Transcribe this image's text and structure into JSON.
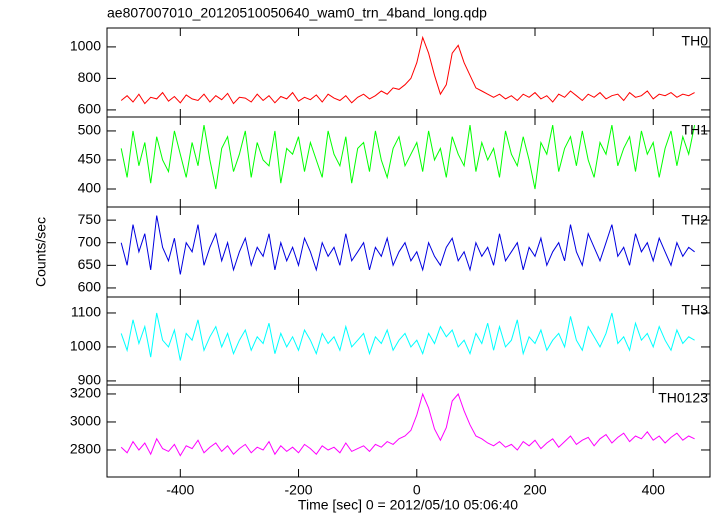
{
  "chart_data": {
    "type": "line",
    "title": "ae807007010_20120510050640_wam0_trn_4band_long.qdp",
    "x_label": "Time [sec] 0 = 2012/05/10 05:06:40",
    "y_label": "Counts/sec",
    "xlim": [
      -524,
      496
    ],
    "xticks": [
      -400,
      -200,
      0,
      200,
      400
    ],
    "x": [
      -500,
      -490,
      -480,
      -470,
      -460,
      -450,
      -440,
      -430,
      -420,
      -410,
      -400,
      -390,
      -380,
      -370,
      -360,
      -350,
      -340,
      -330,
      -320,
      -310,
      -300,
      -290,
      -280,
      -270,
      -260,
      -250,
      -240,
      -230,
      -220,
      -210,
      -200,
      -190,
      -180,
      -170,
      -160,
      -150,
      -140,
      -130,
      -120,
      -110,
      -100,
      -90,
      -80,
      -70,
      -60,
      -50,
      -40,
      -30,
      -20,
      -10,
      0,
      10,
      20,
      30,
      40,
      50,
      60,
      70,
      80,
      90,
      100,
      110,
      120,
      130,
      140,
      150,
      160,
      170,
      180,
      190,
      200,
      210,
      220,
      230,
      240,
      250,
      260,
      270,
      280,
      290,
      300,
      310,
      320,
      330,
      340,
      350,
      360,
      370,
      380,
      390,
      400,
      410,
      420,
      430,
      440,
      450,
      460,
      470
    ],
    "series": [
      {
        "name": "TH0",
        "color": "#ff0000",
        "ylim": [
          555,
          1120
        ],
        "yticks": [
          600,
          800,
          1000
        ],
        "values": [
          660,
          690,
          650,
          700,
          640,
          680,
          670,
          710,
          655,
          685,
          645,
          695,
          670,
          660,
          700,
          650,
          690,
          665,
          705,
          640,
          680,
          675,
          650,
          700,
          660,
          690,
          645,
          685,
          670,
          710,
          655,
          680,
          665,
          695,
          650,
          700,
          675,
          660,
          690,
          645,
          680,
          700,
          670,
          690,
          720,
          700,
          740,
          730,
          760,
          800,
          900,
          1060,
          960,
          820,
          700,
          760,
          960,
          1010,
          900,
          820,
          740,
          720,
          700,
          680,
          700,
          670,
          690,
          660,
          700,
          680,
          710,
          670,
          690,
          650,
          700,
          680,
          720,
          690,
          660,
          700,
          680,
          710,
          670,
          690,
          700,
          660,
          710,
          680,
          690,
          720,
          670,
          700,
          690,
          710,
          680,
          700,
          690,
          710
        ]
      },
      {
        "name": "TH1",
        "color": "#00ff00",
        "ylim": [
          369,
          524
        ],
        "yticks": [
          400,
          450,
          500
        ],
        "values": [
          470,
          420,
          500,
          440,
          480,
          410,
          490,
          450,
          430,
          500,
          460,
          420,
          480,
          440,
          510,
          450,
          400,
          470,
          490,
          430,
          460,
          500,
          420,
          480,
          450,
          440,
          500,
          410,
          470,
          460,
          490,
          430,
          480,
          450,
          420,
          500,
          460,
          440,
          490,
          410,
          470,
          480,
          430,
          500,
          450,
          420,
          470,
          490,
          440,
          460,
          480,
          430,
          500,
          450,
          470,
          420,
          490,
          460,
          440,
          510,
          430,
          480,
          450,
          470,
          420,
          500,
          460,
          440,
          490,
          450,
          400,
          480,
          460,
          510,
          430,
          470,
          490,
          440,
          500,
          450,
          420,
          480,
          460,
          510,
          440,
          470,
          490,
          430,
          500,
          460,
          480,
          420,
          470,
          500,
          440,
          490,
          460,
          510
        ]
      },
      {
        "name": "TH2",
        "color": "#0000e0",
        "ylim": [
          580,
          779
        ],
        "yticks": [
          600,
          650,
          700,
          750
        ],
        "values": [
          700,
          650,
          740,
          680,
          720,
          640,
          760,
          690,
          660,
          710,
          630,
          700,
          680,
          740,
          650,
          690,
          720,
          660,
          700,
          640,
          680,
          710,
          650,
          690,
          670,
          720,
          640,
          700,
          660,
          690,
          650,
          710,
          680,
          640,
          700,
          670,
          690,
          650,
          720,
          660,
          680,
          700,
          640,
          690,
          670,
          710,
          650,
          680,
          700,
          660,
          680,
          640,
          700,
          670,
          650,
          690,
          710,
          660,
          680,
          640,
          700,
          670,
          690,
          650,
          720,
          660,
          680,
          700,
          640,
          690,
          670,
          710,
          650,
          680,
          700,
          660,
          740,
          680,
          650,
          720,
          690,
          660,
          700,
          740,
          670,
          690,
          650,
          720,
          680,
          700,
          660,
          710,
          680,
          650,
          700,
          670,
          690,
          680
        ]
      },
      {
        "name": "TH3",
        "color": "#00ffff",
        "ylim": [
          888,
          1147
        ],
        "yticks": [
          900,
          1000,
          1100
        ],
        "values": [
          1040,
          990,
          1080,
          1010,
          1060,
          970,
          1100,
          1020,
          1000,
          1050,
          960,
          1040,
          1020,
          1080,
          990,
          1030,
          1060,
          1000,
          1040,
          980,
          1020,
          1050,
          990,
          1030,
          1010,
          1070,
          980,
          1040,
          1000,
          1030,
          990,
          1050,
          1020,
          980,
          1040,
          1010,
          1030,
          990,
          1060,
          1000,
          1020,
          1040,
          980,
          1030,
          1010,
          1050,
          990,
          1020,
          1040,
          1000,
          1020,
          980,
          1040,
          1010,
          1060,
          1030,
          1050,
          1000,
          1020,
          980,
          1040,
          1010,
          1070,
          990,
          1060,
          1000,
          1020,
          1080,
          980,
          1030,
          1010,
          1050,
          990,
          1020,
          1040,
          1000,
          1090,
          1020,
          990,
          1060,
          1030,
          1000,
          1040,
          1100,
          1010,
          1030,
          990,
          1070,
          1020,
          1040,
          1000,
          1060,
          1020,
          990,
          1050,
          1010,
          1030,
          1020
        ]
      },
      {
        "name": "TH0123",
        "color": "#ff00ff",
        "ylim": [
          2607,
          3264
        ],
        "yticks": [
          2800,
          3000,
          3200
        ],
        "values": [
          2820,
          2780,
          2860,
          2800,
          2850,
          2770,
          2880,
          2810,
          2790,
          2840,
          2760,
          2830,
          2810,
          2870,
          2780,
          2820,
          2850,
          2790,
          2830,
          2770,
          2810,
          2840,
          2780,
          2820,
          2800,
          2860,
          2770,
          2830,
          2790,
          2820,
          2780,
          2840,
          2810,
          2770,
          2830,
          2800,
          2820,
          2780,
          2850,
          2790,
          2810,
          2830,
          2790,
          2840,
          2820,
          2860,
          2840,
          2880,
          2900,
          2940,
          3050,
          3200,
          3100,
          2950,
          2870,
          2960,
          3150,
          3200,
          3080,
          2980,
          2900,
          2880,
          2850,
          2830,
          2860,
          2820,
          2840,
          2800,
          2860,
          2830,
          2870,
          2810,
          2850,
          2880,
          2820,
          2860,
          2900,
          2840,
          2870,
          2890,
          2830,
          2880,
          2910,
          2850,
          2890,
          2920,
          2860,
          2900,
          2880,
          2930,
          2870,
          2900,
          2850,
          2890,
          2920,
          2870,
          2900,
          2880
        ]
      }
    ]
  }
}
